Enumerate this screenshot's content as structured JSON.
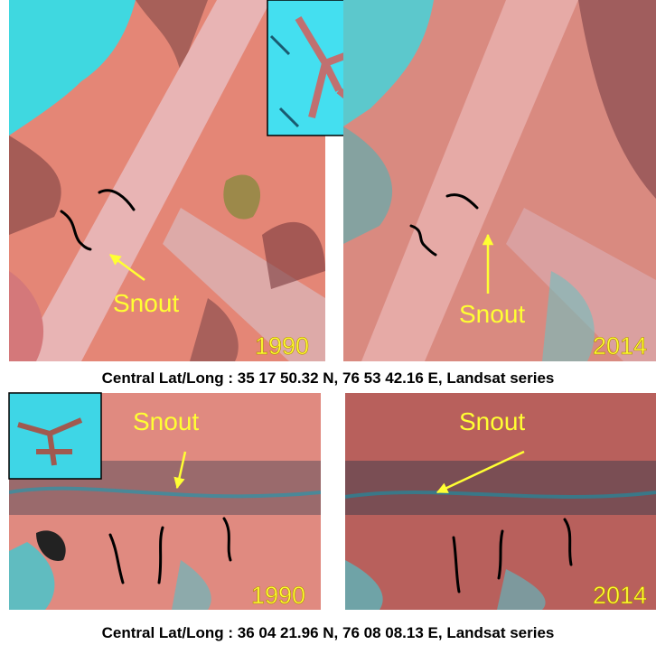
{
  "panels": [
    {
      "label": "Snout",
      "year": "1990"
    },
    {
      "label": "Snout",
      "year": "2014"
    },
    {
      "label": "Snout",
      "year": "1990"
    },
    {
      "label": "Snout",
      "year": "2014"
    }
  ],
  "captions": [
    "Central Lat/Long : 35 17 50.32 N, 76 53 42.16 E, Landsat series",
    "Central Lat/Long : 36 04 21.96 N, 76 08 08.13 E, Landsat series"
  ]
}
